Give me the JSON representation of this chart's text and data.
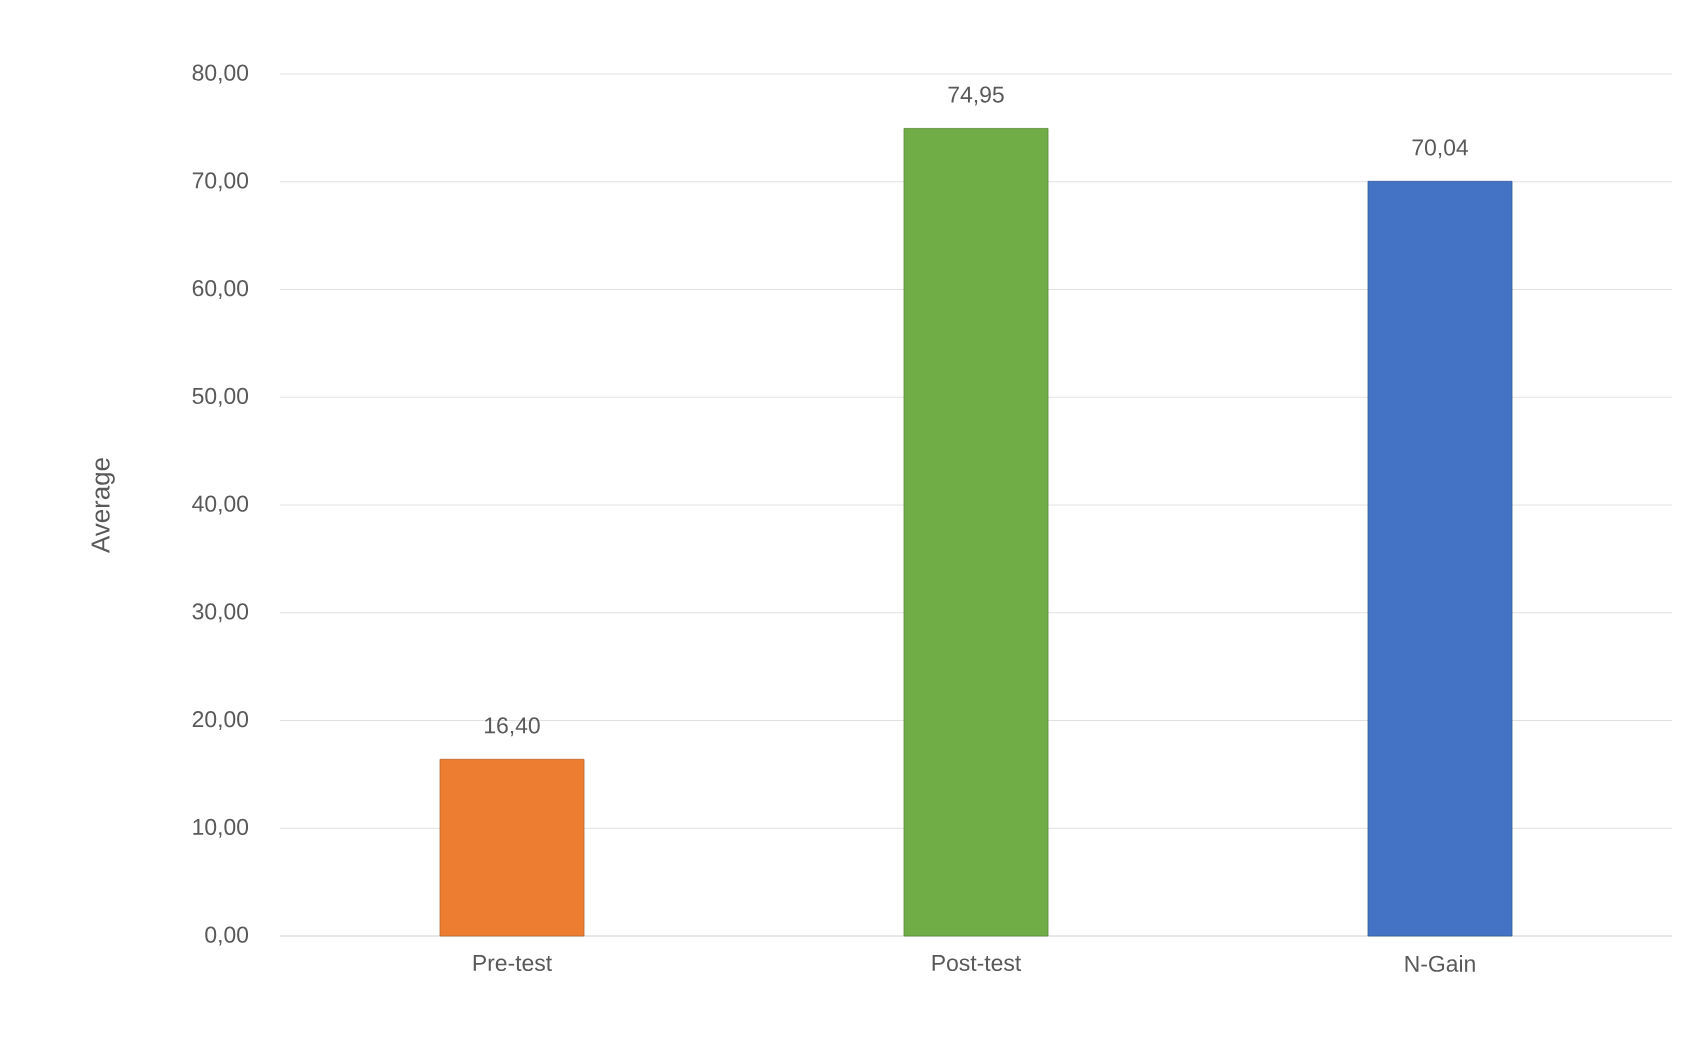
{
  "chart_data": {
    "type": "bar",
    "ylabel": "Average",
    "categories": [
      "Pre-test",
      "Post-test",
      "N-Gain"
    ],
    "values": [
      16.4,
      74.95,
      70.04
    ],
    "colors": [
      "#ed7d31",
      "#70ad47",
      "#4472c4"
    ],
    "value_labels": [
      "16,40",
      "74,95",
      "70,04"
    ],
    "ylim": [
      0,
      80
    ],
    "yticks": [
      {
        "value": 0,
        "label": "0,00"
      },
      {
        "value": 10,
        "label": "10,00"
      },
      {
        "value": 20,
        "label": "20,00"
      },
      {
        "value": 30,
        "label": "30,00"
      },
      {
        "value": 40,
        "label": "40,00"
      },
      {
        "value": 50,
        "label": "50,00"
      },
      {
        "value": 60,
        "label": "60,00"
      },
      {
        "value": 70,
        "label": "70,00"
      },
      {
        "value": 80,
        "label": "80,00"
      }
    ],
    "grid": "y"
  }
}
